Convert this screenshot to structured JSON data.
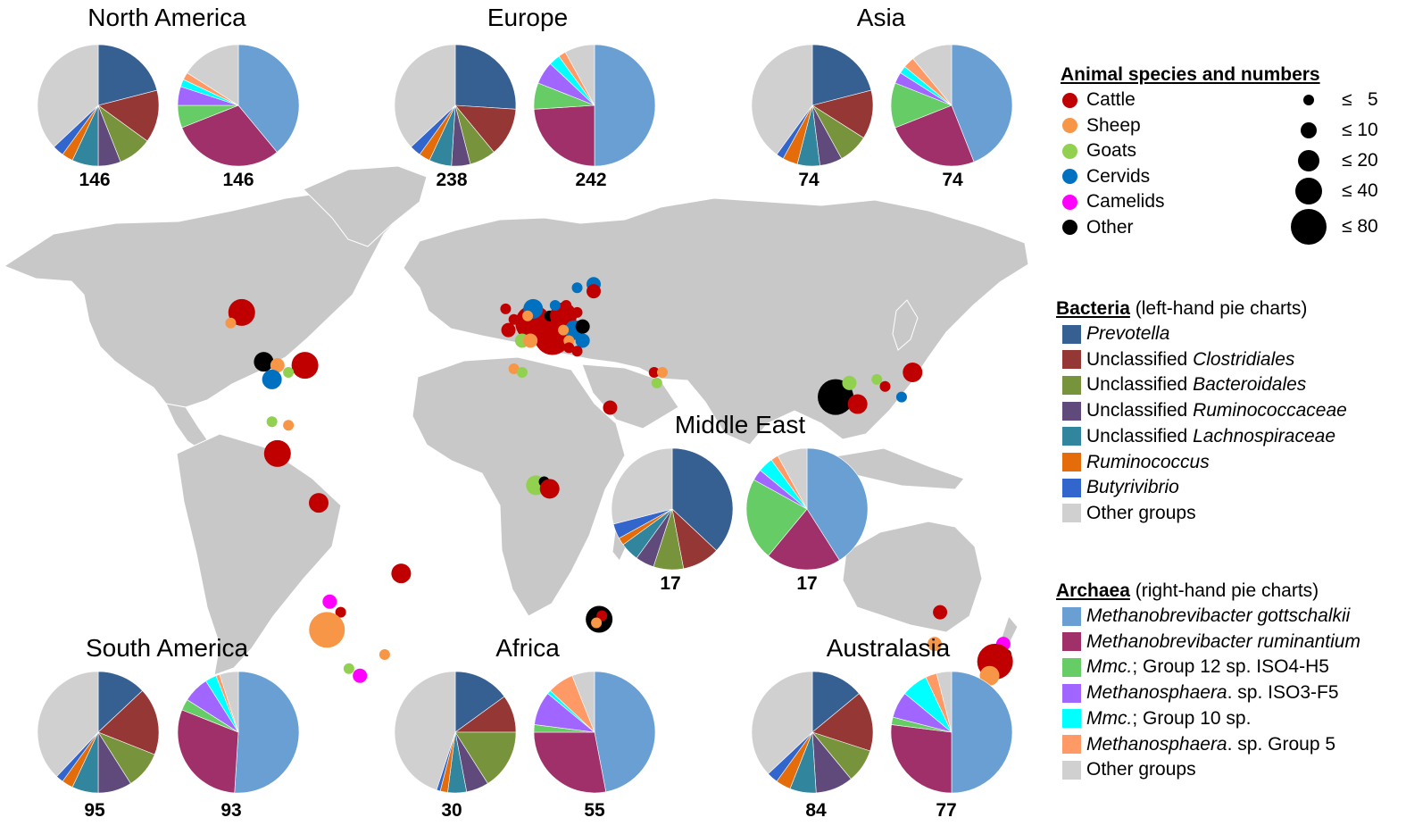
{
  "legend": {
    "animals_title": "Animal species and numbers",
    "animals": [
      {
        "name": "Cattle",
        "color": "#c00000"
      },
      {
        "name": "Sheep",
        "color": "#f79646"
      },
      {
        "name": "Goats",
        "color": "#92d050"
      },
      {
        "name": "Cervids",
        "color": "#0070c0"
      },
      {
        "name": "Camelids",
        "color": "#ff00ff"
      },
      {
        "name": "Other",
        "color": "#000000"
      }
    ],
    "sizes": [
      "≤   5",
      "≤ 10",
      "≤ 20",
      "≤ 40",
      "≤ 80"
    ],
    "bacteria_title": "Bacteria",
    "bacteria_note": "(left-hand pie charts)",
    "bacteria": [
      {
        "pre": "",
        "it": "Prevotella",
        "color": "#376092"
      },
      {
        "pre": "Unclassified ",
        "it": "Clostridiales",
        "color": "#953735"
      },
      {
        "pre": "Unclassified ",
        "it": "Bacteroidales",
        "color": "#77933c"
      },
      {
        "pre": "Unclassified ",
        "it": "Ruminococcaceae",
        "color": "#604a7b"
      },
      {
        "pre": "Unclassified ",
        "it": "Lachnospiraceae",
        "color": "#31859c"
      },
      {
        "pre": "",
        "it": "Ruminococcus",
        "color": "#e46c0a"
      },
      {
        "pre": "",
        "it": "Butyrivibrio",
        "color": "#3366cc"
      },
      {
        "pre": "Other groups",
        "it": "",
        "color": "#d0d0d0"
      }
    ],
    "archaea_title": "Archaea",
    "archaea_note": "(right-hand pie charts)",
    "archaea": [
      {
        "it": "Methanobrevibacter gottschalkii",
        "post": "",
        "color": "#6a9fd4"
      },
      {
        "it": "Methanobrevibacter ruminantium",
        "post": "",
        "color": "#a0306a"
      },
      {
        "it": "Mmc.",
        "post": "; Group 12 sp. ISO4-H5",
        "color": "#66cc66"
      },
      {
        "it": "Methanosphaera",
        "post": ". sp. ISO3-F5",
        "color": "#a066ff"
      },
      {
        "it": "Mmc.",
        "post": "; Group 10 sp.",
        "color": "#00ffff"
      },
      {
        "it": "Methanosphaera",
        "post": ". sp. Group 5",
        "color": "#ff9966"
      },
      {
        "it": "",
        "post": "Other groups",
        "color": "#d0d0d0"
      }
    ]
  },
  "chart_data": [
    {
      "type": "pie",
      "title": "North America",
      "kind": "Bacteria",
      "n": "146",
      "values": [
        21,
        14,
        9,
        6,
        7,
        3,
        3,
        37
      ]
    },
    {
      "type": "pie",
      "title": "North America",
      "kind": "Archaea",
      "n": "146",
      "values": [
        39,
        30,
        6,
        5,
        2,
        2,
        16
      ]
    },
    {
      "type": "pie",
      "title": "Europe",
      "kind": "Bacteria",
      "n": "238",
      "values": [
        26,
        13,
        7,
        5,
        6,
        3,
        3,
        37
      ]
    },
    {
      "type": "pie",
      "title": "Europe",
      "kind": "Archaea",
      "n": "242",
      "values": [
        50,
        24,
        7,
        6,
        3,
        2,
        8
      ]
    },
    {
      "type": "pie",
      "title": "Asia",
      "kind": "Bacteria",
      "n": "74",
      "values": [
        21,
        13,
        8,
        6,
        6,
        4,
        2,
        40
      ]
    },
    {
      "type": "pie",
      "title": "Asia",
      "kind": "Archaea",
      "n": "74",
      "values": [
        44,
        25,
        12,
        3,
        2,
        3,
        11
      ]
    },
    {
      "type": "pie",
      "title": "Middle East",
      "kind": "Bacteria",
      "n": "17",
      "values": [
        37,
        10,
        8,
        5,
        5,
        2,
        4,
        29
      ]
    },
    {
      "type": "pie",
      "title": "Middle East",
      "kind": "Archaea",
      "n": "17",
      "values": [
        41,
        20,
        22,
        3,
        4,
        2,
        8
      ]
    },
    {
      "type": "pie",
      "title": "South America",
      "kind": "Bacteria",
      "n": "95",
      "values": [
        13,
        18,
        10,
        9,
        7,
        3,
        2,
        38
      ]
    },
    {
      "type": "pie",
      "title": "South America",
      "kind": "Archaea",
      "n": "93",
      "values": [
        51,
        30,
        3,
        7,
        3,
        1,
        5
      ]
    },
    {
      "type": "pie",
      "title": "Africa",
      "kind": "Bacteria",
      "n": "30",
      "values": [
        15,
        10,
        16,
        6,
        5,
        2,
        1,
        45
      ]
    },
    {
      "type": "pie",
      "title": "Africa",
      "kind": "Archaea",
      "n": "55",
      "values": [
        47,
        28,
        2,
        9,
        1,
        7,
        6
      ]
    },
    {
      "type": "pie",
      "title": "Australasia",
      "kind": "Bacteria",
      "n": "84",
      "values": [
        14,
        16,
        9,
        10,
        7,
        4,
        3,
        37
      ]
    },
    {
      "type": "pie",
      "title": "Australasia",
      "kind": "Archaea",
      "n": "77",
      "values": [
        50,
        27,
        2,
        7,
        7,
        3,
        4
      ]
    }
  ],
  "sample_sites": [
    {
      "animal": "Cattle",
      "lon": -103,
      "lat": 57,
      "size": 4
    },
    {
      "animal": "Sheep",
      "lon": -107,
      "lat": 54,
      "size": 1
    },
    {
      "animal": "Other",
      "lon": -95,
      "lat": 43,
      "size": 3
    },
    {
      "animal": "Sheep",
      "lon": -90,
      "lat": 42,
      "size": 2
    },
    {
      "animal": "Cattle",
      "lon": -80,
      "lat": 42,
      "size": 4
    },
    {
      "animal": "Cervids",
      "lon": -92,
      "lat": 38,
      "size": 3
    },
    {
      "animal": "Goats",
      "lon": -86,
      "lat": 40,
      "size": 1
    },
    {
      "animal": "Goats",
      "lon": -92,
      "lat": 26,
      "size": 1
    },
    {
      "animal": "Sheep",
      "lon": -86,
      "lat": 25,
      "size": 1
    },
    {
      "animal": "Cattle",
      "lon": -90,
      "lat": 17,
      "size": 4
    },
    {
      "animal": "Cattle",
      "lon": -75,
      "lat": 3,
      "size": 3
    },
    {
      "animal": "Cattle",
      "lon": -45,
      "lat": -17,
      "size": 3
    },
    {
      "animal": "Camelids",
      "lon": -71,
      "lat": -25,
      "size": 2
    },
    {
      "animal": "Cattle",
      "lon": -67,
      "lat": -28,
      "size": 1
    },
    {
      "animal": "Sheep",
      "lon": -72,
      "lat": -33,
      "size": 5
    },
    {
      "animal": "Goats",
      "lon": -64,
      "lat": -44,
      "size": 1
    },
    {
      "animal": "Camelids",
      "lon": -60,
      "lat": -46,
      "size": 2
    },
    {
      "animal": "Sheep",
      "lon": -51,
      "lat": -40,
      "size": 1
    },
    {
      "animal": "Cattle",
      "lon": -7,
      "lat": 58,
      "size": 1
    },
    {
      "animal": "Cattle",
      "lon": -4,
      "lat": 55,
      "size": 1
    },
    {
      "animal": "Cattle",
      "lon": -6,
      "lat": 52,
      "size": 2
    },
    {
      "animal": "Cattle",
      "lon": 3,
      "lat": 54,
      "size": 5
    },
    {
      "animal": "Cervids",
      "lon": 3,
      "lat": 58,
      "size": 3
    },
    {
      "animal": "Sheep",
      "lon": 1,
      "lat": 56,
      "size": 1
    },
    {
      "animal": "Cattle",
      "lon": 6,
      "lat": 52,
      "size": 3
    },
    {
      "animal": "Cattle",
      "lon": 10,
      "lat": 50,
      "size": 5
    },
    {
      "animal": "Other",
      "lon": 9,
      "lat": 56,
      "size": 1
    },
    {
      "animal": "Cattle",
      "lon": 14,
      "lat": 56,
      "size": 4
    },
    {
      "animal": "Cervids",
      "lon": 11,
      "lat": 59,
      "size": 1
    },
    {
      "animal": "Cattle",
      "lon": 15,
      "lat": 59,
      "size": 1
    },
    {
      "animal": "Cervids",
      "lon": 19,
      "lat": 64,
      "size": 1
    },
    {
      "animal": "Cervids",
      "lon": 25,
      "lat": 65,
      "size": 2
    },
    {
      "animal": "Cattle",
      "lon": 25,
      "lat": 63,
      "size": 2
    },
    {
      "animal": "Cattle",
      "lon": 19,
      "lat": 57,
      "size": 1
    },
    {
      "animal": "Cervids",
      "lon": 18,
      "lat": 52,
      "size": 3
    },
    {
      "animal": "Other",
      "lon": 21,
      "lat": 53,
      "size": 2
    },
    {
      "animal": "Sheep",
      "lon": 14,
      "lat": 52,
      "size": 1
    },
    {
      "animal": "Cervids",
      "lon": 21,
      "lat": 49,
      "size": 2
    },
    {
      "animal": "Sheep",
      "lon": 16,
      "lat": 49,
      "size": 1
    },
    {
      "animal": "Cattle",
      "lon": 16,
      "lat": 47,
      "size": 1
    },
    {
      "animal": "Cattle",
      "lon": 19,
      "lat": 46,
      "size": 1
    },
    {
      "animal": "Goats",
      "lon": -1,
      "lat": 49,
      "size": 2
    },
    {
      "animal": "Sheep",
      "lon": 2,
      "lat": 49,
      "size": 2
    },
    {
      "animal": "Sheep",
      "lon": -4,
      "lat": 41,
      "size": 1
    },
    {
      "animal": "Goats",
      "lon": -1,
      "lat": 40,
      "size": 1
    },
    {
      "animal": "Cattle",
      "lon": 47,
      "lat": 40,
      "size": 1
    },
    {
      "animal": "Sheep",
      "lon": 50,
      "lat": 40,
      "size": 1
    },
    {
      "animal": "Goats",
      "lon": 48,
      "lat": 37,
      "size": 1
    },
    {
      "animal": "Cattle",
      "lon": 31,
      "lat": 30,
      "size": 2
    },
    {
      "animal": "Goats",
      "lon": 4,
      "lat": 8,
      "size": 3
    },
    {
      "animal": "Other",
      "lon": 7,
      "lat": 9,
      "size": 1
    },
    {
      "animal": "Cattle",
      "lon": 9,
      "lat": 7,
      "size": 3
    },
    {
      "animal": "Other",
      "lon": 27,
      "lat": -30,
      "size": 4
    },
    {
      "animal": "Cattle",
      "lon": 28,
      "lat": -29,
      "size": 1
    },
    {
      "animal": "Sheep",
      "lon": 26,
      "lat": -31,
      "size": 1
    },
    {
      "animal": "Other",
      "lon": 113,
      "lat": 33,
      "size": 5
    },
    {
      "animal": "Goats",
      "lon": 118,
      "lat": 37,
      "size": 2
    },
    {
      "animal": "Cattle",
      "lon": 121,
      "lat": 31,
      "size": 3
    },
    {
      "animal": "Goats",
      "lon": 128,
      "lat": 38,
      "size": 1
    },
    {
      "animal": "Cattle",
      "lon": 131,
      "lat": 36,
      "size": 1
    },
    {
      "animal": "Cervids",
      "lon": 137,
      "lat": 33,
      "size": 1
    },
    {
      "animal": "Cattle",
      "lon": 141,
      "lat": 40,
      "size": 3
    },
    {
      "animal": "Cattle",
      "lon": 151,
      "lat": -28,
      "size": 2
    },
    {
      "animal": "Sheep",
      "lon": 149,
      "lat": -37,
      "size": 2
    },
    {
      "animal": "Camelids",
      "lon": 174,
      "lat": -37,
      "size": 2
    },
    {
      "animal": "Other",
      "lon": 175,
      "lat": -40,
      "size": 1
    },
    {
      "animal": "Cattle",
      "lon": 171,
      "lat": -42,
      "size": 5
    },
    {
      "animal": "Sheep",
      "lon": 169,
      "lat": -46,
      "size": 3
    }
  ]
}
